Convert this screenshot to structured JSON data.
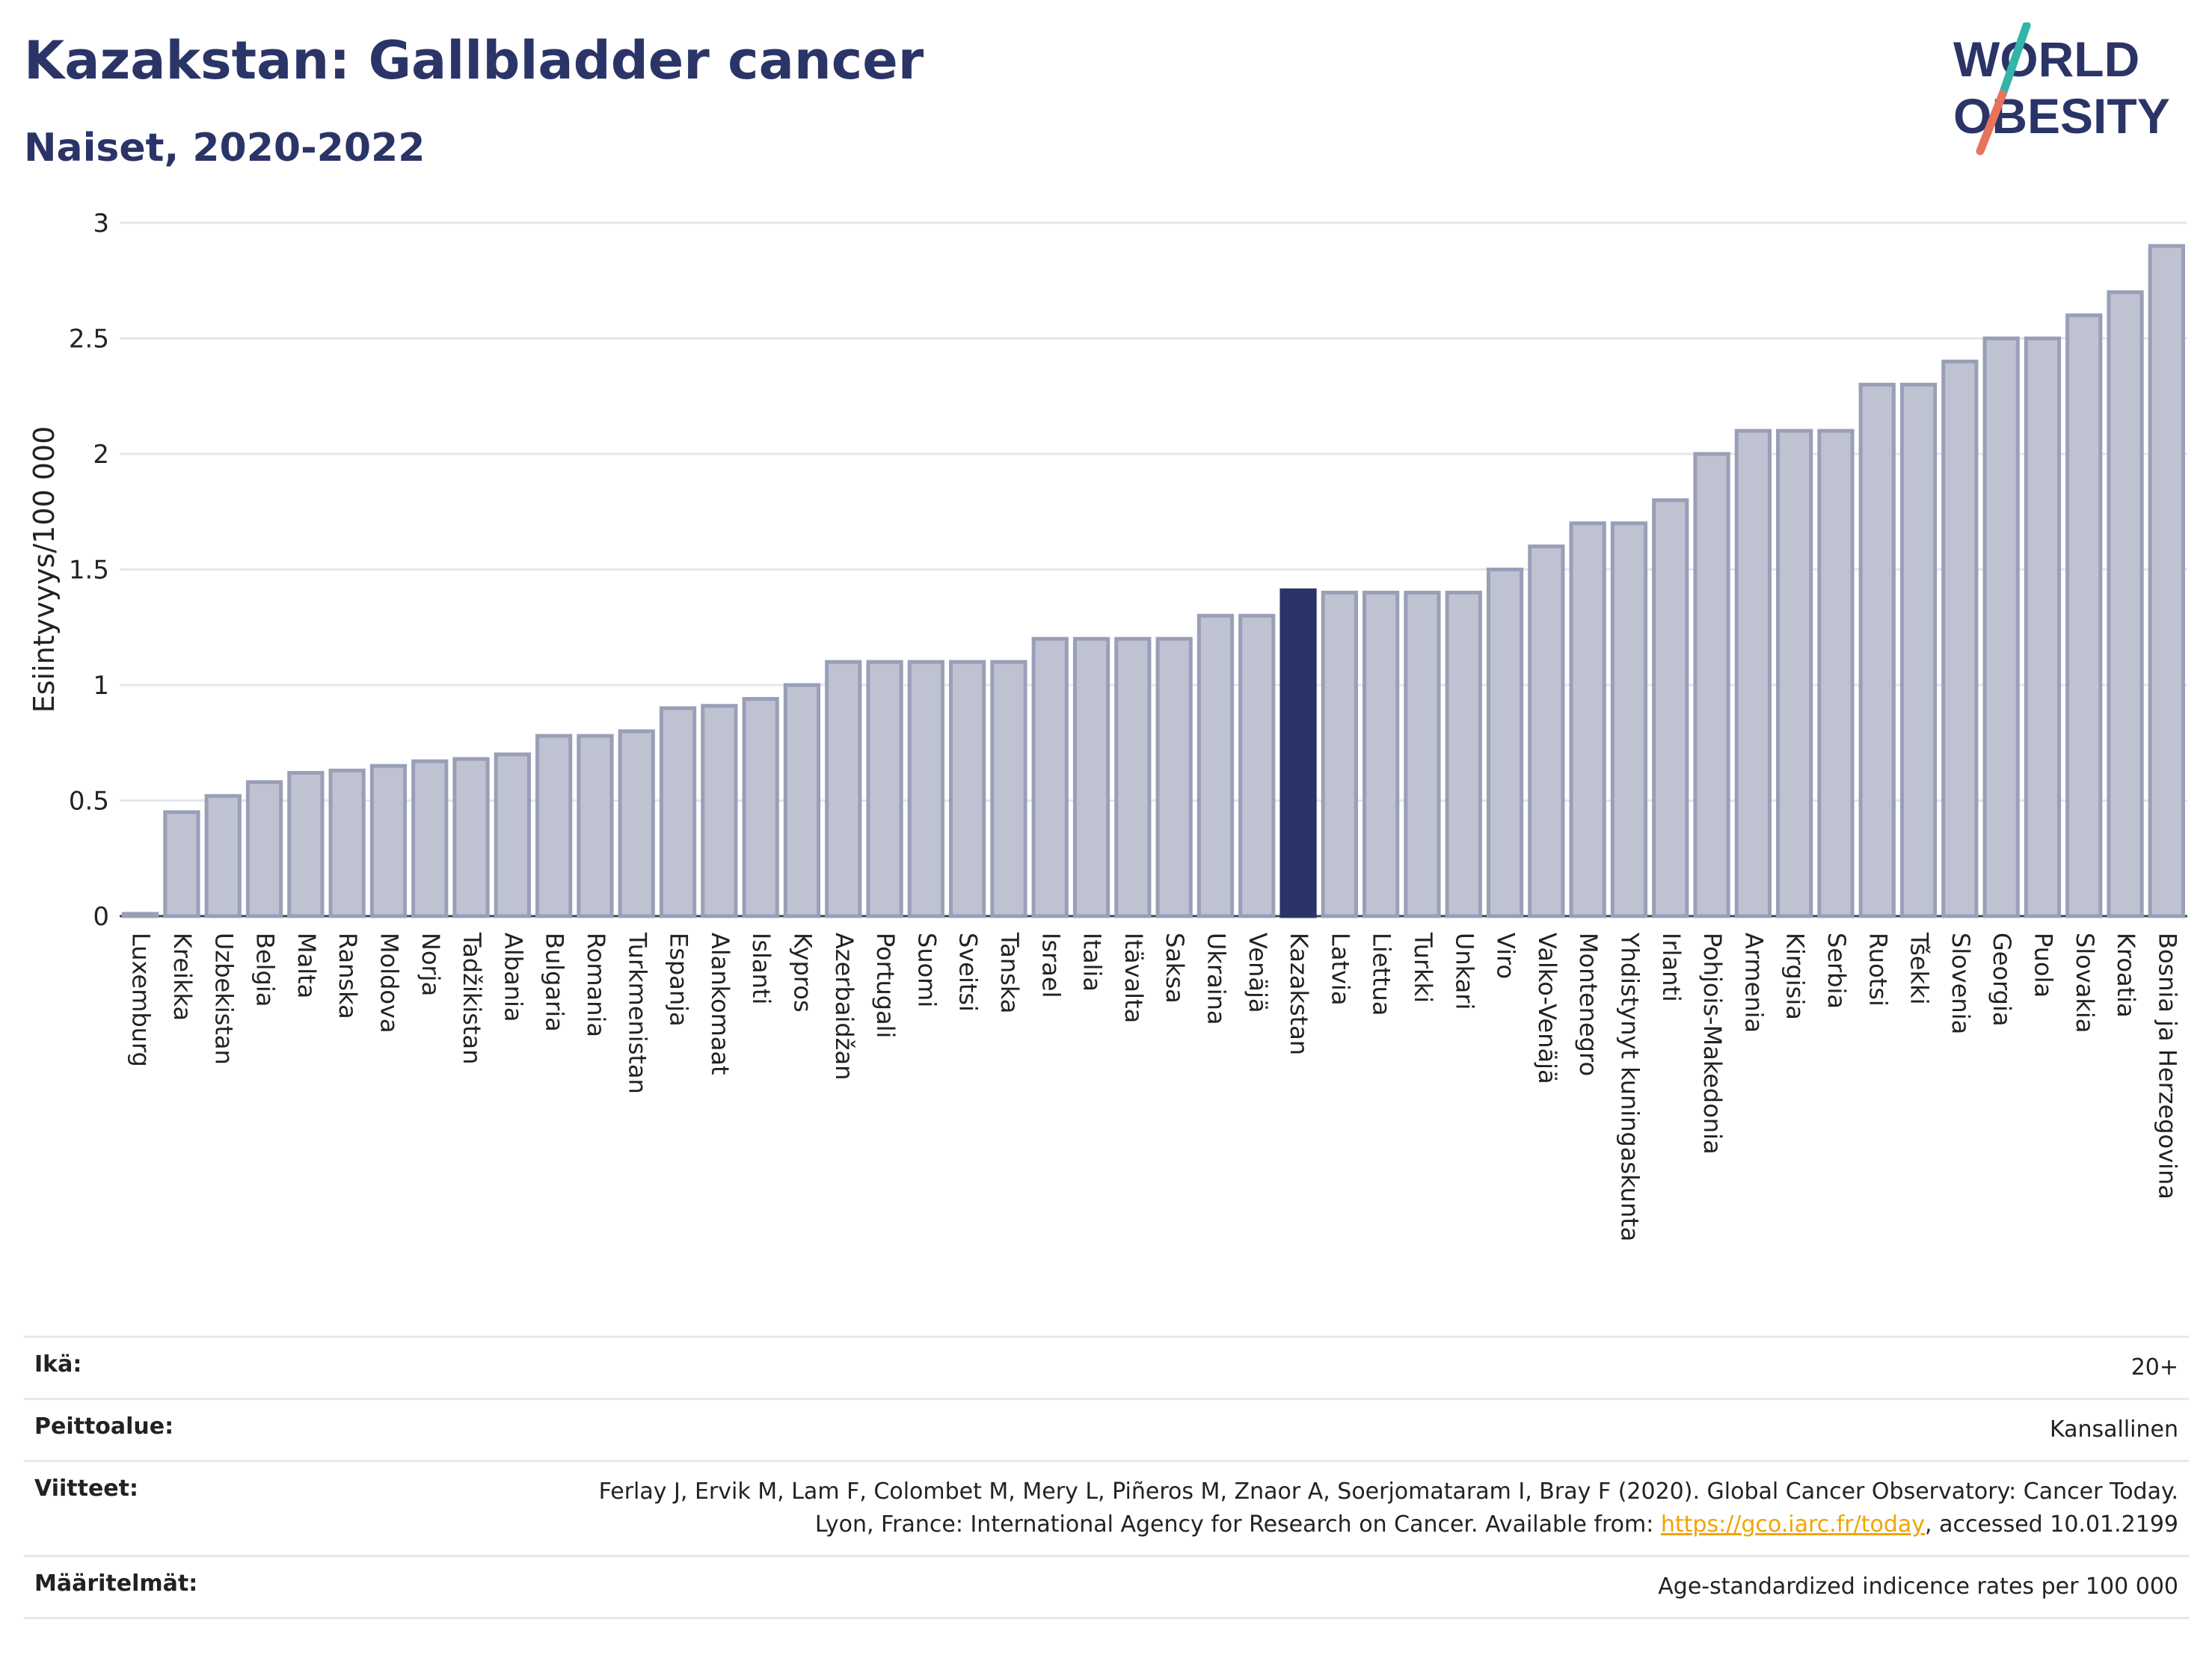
{
  "header": {
    "title": "Kazakstan: Gallbladder cancer",
    "subtitle": "Naiset, 2020-2022",
    "logo_line1": "WORLD",
    "logo_line2": "OBESITY"
  },
  "colors": {
    "bar": "#bfc2d0",
    "bar_edge": "#9a9fb8",
    "highlight": "#2b3467",
    "title": "#2b3467",
    "grid": "#e4e6ee",
    "logo_slash_top": "#33b5a8",
    "logo_slash_bottom": "#e8735a"
  },
  "chart_data": {
    "type": "bar",
    "ylabel": "Esiintyvyys/100 000",
    "ylim": [
      0,
      3
    ],
    "yticks": [
      0,
      0.5,
      1,
      1.5,
      2,
      2.5,
      3
    ],
    "ytick_labels": [
      "0",
      "0.5",
      "1",
      "1.5",
      "2",
      "2.5",
      "3"
    ],
    "highlight": "Kazakstan",
    "grid": true,
    "categories": [
      "Luxemburg",
      "Kreikka",
      "Uzbekistan",
      "Belgia",
      "Malta",
      "Ranska",
      "Moldova",
      "Norja",
      "Tadžikistan",
      "Albania",
      "Bulgaria",
      "Romania",
      "Turkmenistan",
      "Espanja",
      "Alankomaat",
      "Islanti",
      "Kypros",
      "Azerbaidžan",
      "Portugali",
      "Suomi",
      "Sveitsi",
      "Tanska",
      "Israel",
      "Italia",
      "Itävalta",
      "Saksa",
      "Ukraina",
      "Venäjä",
      "Kazakstan",
      "Latvia",
      "Liettua",
      "Turkki",
      "Unkari",
      "Viro",
      "Valko-Venäjä",
      "Montenegro",
      "Yhdistynyt kuningaskunta",
      "Irlanti",
      "Pohjois-Makedonia",
      "Armenia",
      "Kirgisia",
      "Serbia",
      "Ruotsi",
      "Tšekki",
      "Slovenia",
      "Georgia",
      "Puola",
      "Slovakia",
      "Kroatia",
      "Bosnia ja Herzegovina"
    ],
    "values": [
      0.01,
      0.45,
      0.52,
      0.58,
      0.62,
      0.63,
      0.65,
      0.67,
      0.68,
      0.7,
      0.78,
      0.78,
      0.8,
      0.9,
      0.91,
      0.94,
      1.0,
      1.1,
      1.1,
      1.1,
      1.1,
      1.1,
      1.2,
      1.2,
      1.2,
      1.2,
      1.3,
      1.3,
      1.41,
      1.4,
      1.4,
      1.4,
      1.4,
      1.5,
      1.6,
      1.7,
      1.7,
      1.8,
      2.0,
      2.1,
      2.1,
      2.1,
      2.3,
      2.3,
      2.4,
      2.5,
      2.5,
      2.6,
      2.7,
      2.9
    ]
  },
  "meta": {
    "rows": [
      {
        "key": "Ikä:",
        "value": "20+"
      },
      {
        "key": "Peittoalue:",
        "value": "Kansallinen"
      },
      {
        "key": "Määritelmät:",
        "value": "Age-standardized indicence rates per 100 000"
      }
    ],
    "ref_key": "Viitteet:",
    "ref_text_1": "Ferlay J, Ervik M, Lam F, Colombet M, Mery L, Piñeros M, Znaor A, Soerjomataram I, Bray F (2020). Global Cancer Observatory: Cancer Today. Lyon, France: International Agency for Research on Cancer. Available from: ",
    "ref_link": "https://gco.iarc.fr/today",
    "ref_text_2": ", accessed 10.01.2199"
  }
}
